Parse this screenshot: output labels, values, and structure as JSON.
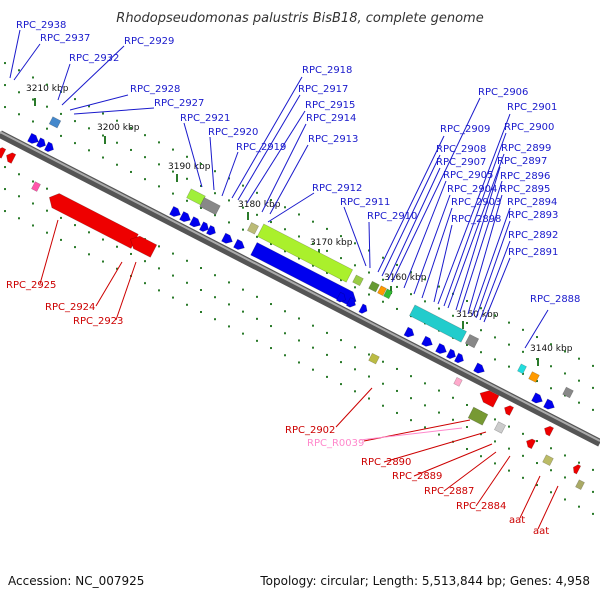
{
  "title": "Rhodopseudomonas palustris BisB18, complete genome",
  "accession": "Accession: NC_007925",
  "topology": "Topology: circular; Length: 5,513,844 bp; Genes: 4,958",
  "scale_ticks": [
    "3210 kbp",
    "3200 kbp",
    "3190 kbp",
    "3180 kbp",
    "3170 kbp",
    "3160 kbp",
    "3150 kbp",
    "3140 kbp"
  ],
  "forward_gene_labels": [
    "RPC_2938",
    "RPC_2937",
    "RPC_2932",
    "RPC_2929",
    "RPC_2928",
    "RPC_2927",
    "RPC_2921",
    "RPC_2920",
    "RPC_2919",
    "RPC_2918",
    "RPC_2917",
    "RPC_2915",
    "RPC_2914",
    "RPC_2913",
    "RPC_2912",
    "RPC_2911",
    "RPC_2910",
    "RPC_2909",
    "RPC_2908",
    "RPC_2907",
    "RPC_2906",
    "RPC_2905",
    "RPC_2904",
    "RPC_2903",
    "RPC_2898",
    "RPC_2901",
    "RPC_2900",
    "RPC_2899",
    "RPC_2897",
    "RPC_2896",
    "RPC_2895",
    "RPC_2894",
    "RPC_2893",
    "RPC_2892",
    "RPC_2891",
    "RPC_2888"
  ],
  "reverse_gene_labels": [
    "RPC_2925",
    "RPC_2924",
    "RPC_2923",
    "RPC_2902",
    "RPC_R0039",
    "RPC_2890",
    "RPC_2889",
    "RPC_2887",
    "RPC_2884",
    "aat",
    "aat"
  ],
  "colors": {
    "forward_label": "#1a1acc",
    "reverse_label": "#cc0000",
    "rna_label": "#ff88cc",
    "backbone": "#777777",
    "tick_mark": "#2a7a2a",
    "cds_forward": "#0000ee",
    "cds_reverse": "#ee0000"
  }
}
